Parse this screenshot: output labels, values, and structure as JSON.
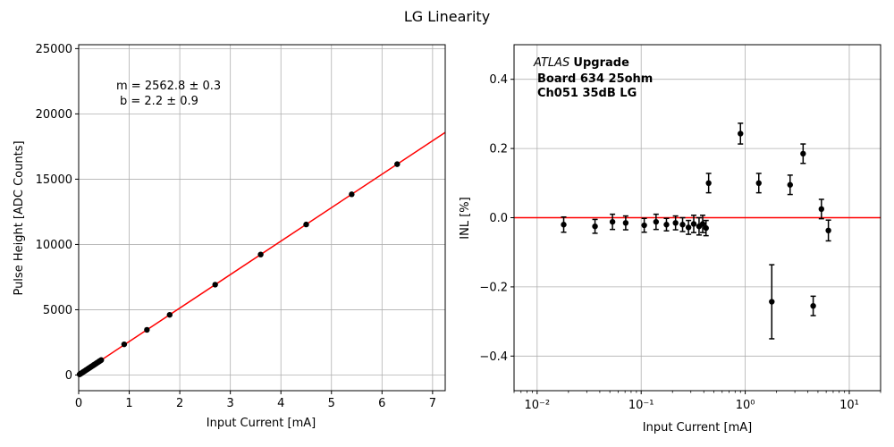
{
  "figure": {
    "title": "LG Linearity"
  },
  "chart_data": [
    {
      "type": "scatter",
      "xlabel": "Input Current [mA]",
      "ylabel": "Pulse Height [ADC Counts]",
      "xlim": [
        0,
        7.25
      ],
      "ylim": [
        -1200,
        25300
      ],
      "grid": true,
      "xticks": [
        0,
        1,
        2,
        3,
        4,
        5,
        6,
        7
      ],
      "xtick_labels": [
        "0",
        "1",
        "2",
        "3",
        "4",
        "5",
        "6",
        "7"
      ],
      "yticks": [
        0,
        5000,
        10000,
        15000,
        20000,
        25000
      ],
      "ytick_labels": [
        "0",
        "5000",
        "10000",
        "15000",
        "20000",
        "25000"
      ],
      "fit": {
        "slope": 2562.8,
        "intercept": 2.2
      },
      "annotation": [
        "m = 2562.8 ± 0.3",
        "b = 2.2 ± 0.9"
      ],
      "points": {
        "x": [
          0.018,
          0.036,
          0.054,
          0.071,
          0.089,
          0.107,
          0.125,
          0.143,
          0.161,
          0.179,
          0.196,
          0.214,
          0.232,
          0.25,
          0.268,
          0.286,
          0.304,
          0.321,
          0.339,
          0.357,
          0.375,
          0.393,
          0.411,
          0.429,
          0.446,
          0.9,
          1.35,
          1.8,
          2.7,
          3.6,
          4.5,
          5.4,
          6.3
        ],
        "y": [
          48,
          94,
          140,
          184,
          230,
          276,
          322,
          369,
          415,
          461,
          505,
          551,
          597,
          643,
          689,
          735,
          781,
          825,
          871,
          917,
          963,
          1009,
          1055,
          1101,
          1145,
          2350,
          3460,
          4610,
          6920,
          9230,
          11530,
          13840,
          16150
        ]
      },
      "colors": {
        "fit_line": "#ff0000",
        "points": "#000000"
      }
    },
    {
      "type": "scatter",
      "xscale": "log",
      "xlabel": "Input Current [mA]",
      "ylabel": "INL [%]",
      "xlim": [
        0.006,
        20
      ],
      "ylim": [
        -0.5,
        0.5
      ],
      "grid": true,
      "xticks": [
        0.01,
        0.1,
        1,
        10
      ],
      "xtick_labels": [
        "10⁻²",
        "10⁻¹",
        "10⁰",
        "10¹"
      ],
      "yticks": [
        -0.4,
        -0.2,
        0.0,
        0.2,
        0.4
      ],
      "ytick_labels": [
        "−0.4",
        "−0.2",
        "0.0",
        "0.2",
        "0.4"
      ],
      "reference_line": 0,
      "annotation": {
        "experiment": "ATLAS",
        "word": "Upgrade",
        "lines": [
          "Board 634 25ohm",
          "Ch051 35dB LG"
        ]
      },
      "points": {
        "x": [
          0.018,
          0.036,
          0.053,
          0.071,
          0.107,
          0.139,
          0.175,
          0.214,
          0.25,
          0.285,
          0.32,
          0.36,
          0.39,
          0.42,
          0.445,
          0.9,
          1.35,
          1.8,
          2.7,
          3.6,
          4.5,
          5.4,
          6.3
        ],
        "y": [
          -0.02,
          -0.025,
          -0.012,
          -0.015,
          -0.022,
          -0.012,
          -0.02,
          -0.015,
          -0.02,
          -0.028,
          -0.018,
          -0.025,
          -0.018,
          -0.03,
          0.1,
          0.243,
          0.1,
          -0.243,
          0.095,
          0.185,
          -0.255,
          0.025,
          -0.037
        ],
        "err": [
          0.022,
          0.02,
          0.022,
          0.02,
          0.02,
          0.022,
          0.018,
          0.02,
          0.02,
          0.02,
          0.025,
          0.025,
          0.025,
          0.022,
          0.028,
          0.03,
          0.028,
          0.107,
          0.028,
          0.028,
          0.028,
          0.028,
          0.03
        ]
      },
      "colors": {
        "reference_line": "#ff0000",
        "points": "#000000"
      }
    }
  ]
}
